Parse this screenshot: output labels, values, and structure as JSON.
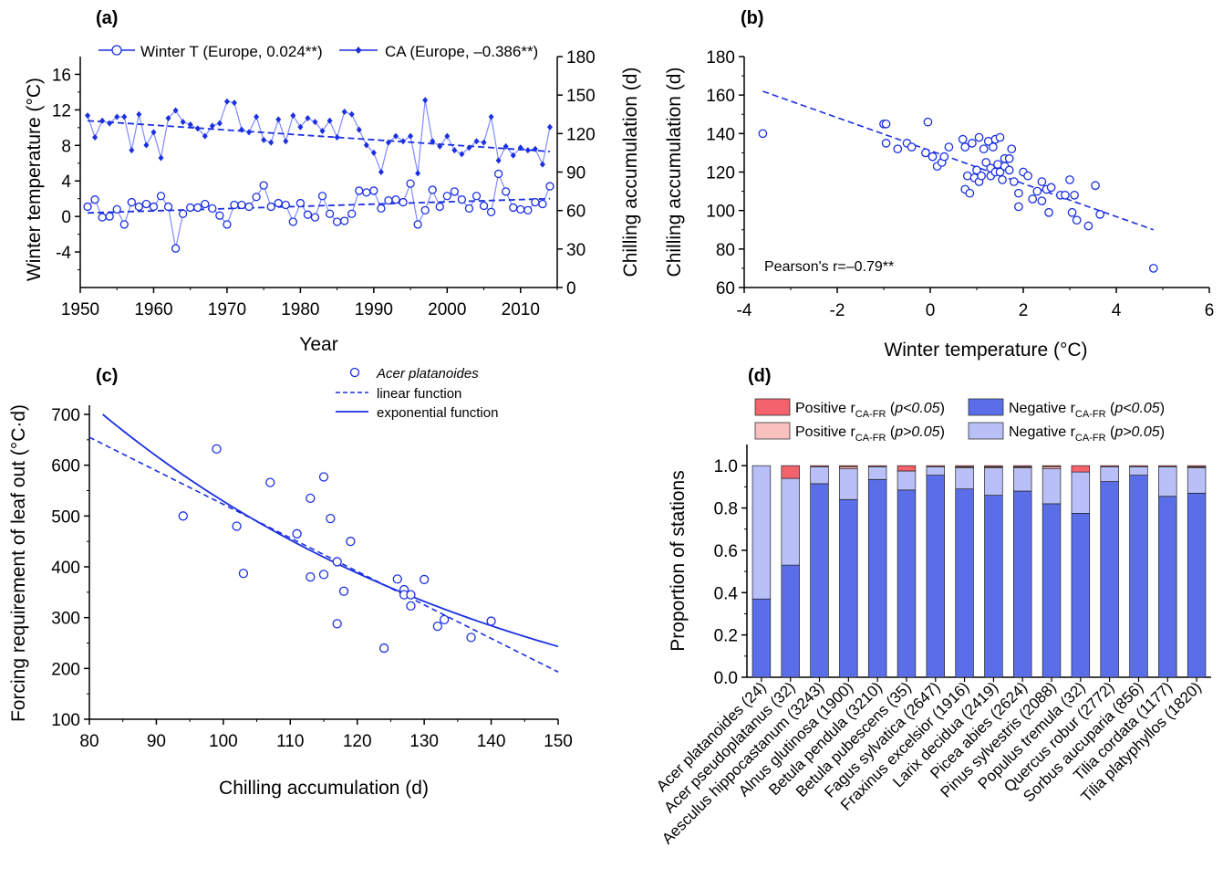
{
  "colors": {
    "blue": "#1a2fe0",
    "light_blue": "#7f8bff",
    "neg_sig": "#5a6ee8",
    "neg_nonsig": "#b9c0f8",
    "pos_sig": "#f4626b",
    "pos_nonsig": "#f9c0c0"
  },
  "chart_data": [
    {
      "panel": "(a)",
      "type": "line",
      "xlabel": "Year",
      "ylabel": "Winter temperature (°C)",
      "y2label": "Chilling accumulation (d)",
      "xlim": [
        1950,
        2015
      ],
      "ylim": [
        -8,
        18
      ],
      "y2lim": [
        0,
        180
      ],
      "xticks": [
        "1950",
        "1960",
        "1970",
        "1980",
        "1990",
        "2000",
        "2010"
      ],
      "yticks": [
        "-4",
        "0",
        "4",
        "8",
        "12",
        "16"
      ],
      "y2ticks": [
        "0",
        "30",
        "60",
        "90",
        "120",
        "150",
        "180"
      ],
      "legend": [
        "Winter T (Europe, 0.024**)",
        "CA (Europe, –0.386**)"
      ],
      "x": [
        1951,
        1952,
        1953,
        1954,
        1955,
        1956,
        1957,
        1958,
        1959,
        1960,
        1961,
        1962,
        1963,
        1964,
        1965,
        1966,
        1967,
        1968,
        1969,
        1970,
        1971,
        1972,
        1973,
        1974,
        1975,
        1976,
        1977,
        1978,
        1979,
        1980,
        1981,
        1982,
        1983,
        1984,
        1985,
        1986,
        1987,
        1988,
        1989,
        1990,
        1991,
        1992,
        1993,
        1994,
        1995,
        1996,
        1997,
        1998,
        1999,
        2000,
        2001,
        2002,
        2003,
        2004,
        2005,
        2006,
        2007,
        2008,
        2009,
        2010,
        2011,
        2012,
        2013,
        2014
      ],
      "series": [
        {
          "name": "Winter T (Europe, 0.024**)",
          "axis": "left",
          "marker": "open-circle",
          "values": [
            1.1,
            1.9,
            -0.1,
            0.0,
            0.8,
            -0.9,
            1.6,
            1.1,
            1.4,
            1.1,
            2.3,
            1.1,
            -3.6,
            0.3,
            1.0,
            1.0,
            1.4,
            0.9,
            0.1,
            -0.9,
            1.3,
            1.3,
            1.1,
            2.2,
            3.5,
            1.1,
            1.5,
            1.3,
            -0.6,
            1.5,
            0.2,
            -0.1,
            2.3,
            0.3,
            -0.6,
            -0.5,
            0.3,
            2.9,
            2.7,
            2.9,
            0.9,
            1.8,
            1.9,
            1.6,
            3.7,
            -0.9,
            0.7,
            3.0,
            1.1,
            2.3,
            2.8,
            1.9,
            0.9,
            2.3,
            1.2,
            0.5,
            4.8,
            2.8,
            1.0,
            0.8,
            0.7,
            1.6,
            1.4,
            3.4
          ],
          "trend": [
            0.4,
            2.0
          ]
        },
        {
          "name": "CA (Europe, –0.386**)",
          "axis": "right",
          "marker": "filled-diamond",
          "values": [
            134,
            117,
            130,
            128,
            133,
            133,
            107,
            135,
            111,
            121,
            101,
            132,
            138,
            129,
            127,
            124,
            118,
            126,
            128,
            145,
            144,
            123,
            121,
            133,
            115,
            113,
            131,
            114,
            134,
            125,
            132,
            129,
            122,
            130,
            117,
            137,
            135,
            123,
            111,
            105,
            90,
            113,
            118,
            114,
            118,
            89,
            146,
            114,
            110,
            118,
            107,
            104,
            109,
            114,
            113,
            133,
            99,
            110,
            103,
            109,
            107,
            108,
            96,
            125
          ],
          "trend": [
            130,
            106
          ]
        }
      ]
    },
    {
      "panel": "(b)",
      "type": "scatter",
      "xlabel": "Winter temperature (°C)",
      "ylabel": "Chilling accumulation (d)",
      "xlim": [
        -4,
        6
      ],
      "ylim": [
        60,
        180
      ],
      "xticks": [
        "-4",
        "-2",
        "0",
        "2",
        "4",
        "6"
      ],
      "yticks": [
        "60",
        "80",
        "100",
        "120",
        "140",
        "160",
        "180"
      ],
      "annotation": "Pearson's r=–0.79**",
      "points": [
        [
          -3.6,
          140
        ],
        [
          -1.0,
          145
        ],
        [
          -0.95,
          145
        ],
        [
          -0.95,
          135
        ],
        [
          -0.7,
          132
        ],
        [
          -0.5,
          135
        ],
        [
          -0.4,
          133
        ],
        [
          -0.1,
          130
        ],
        [
          -0.05,
          146
        ],
        [
          0.05,
          128
        ],
        [
          0.15,
          123
        ],
        [
          0.25,
          125
        ],
        [
          0.3,
          128
        ],
        [
          0.4,
          133
        ],
        [
          0.7,
          137
        ],
        [
          0.75,
          133
        ],
        [
          0.8,
          118
        ],
        [
          0.75,
          111
        ],
        [
          0.85,
          109
        ],
        [
          0.9,
          135
        ],
        [
          0.95,
          117
        ],
        [
          1.0,
          121
        ],
        [
          1.05,
          138
        ],
        [
          1.05,
          115
        ],
        [
          1.1,
          118
        ],
        [
          1.15,
          132
        ],
        [
          1.2,
          125
        ],
        [
          1.25,
          136
        ],
        [
          1.3,
          122
        ],
        [
          1.3,
          118
        ],
        [
          1.35,
          133
        ],
        [
          1.4,
          120
        ],
        [
          1.4,
          137
        ],
        [
          1.45,
          124
        ],
        [
          1.5,
          138
        ],
        [
          1.5,
          120
        ],
        [
          1.55,
          116
        ],
        [
          1.6,
          123
        ],
        [
          1.6,
          127
        ],
        [
          1.7,
          127
        ],
        [
          1.7,
          121
        ],
        [
          1.75,
          132
        ],
        [
          1.8,
          115
        ],
        [
          1.9,
          109
        ],
        [
          1.9,
          102
        ],
        [
          2.0,
          120
        ],
        [
          2.1,
          118
        ],
        [
          2.2,
          106
        ],
        [
          2.3,
          110
        ],
        [
          2.4,
          105
        ],
        [
          2.4,
          115
        ],
        [
          2.5,
          111
        ],
        [
          2.55,
          99
        ],
        [
          2.6,
          112
        ],
        [
          2.8,
          108
        ],
        [
          2.9,
          108
        ],
        [
          3.0,
          116
        ],
        [
          3.05,
          99
        ],
        [
          3.1,
          108
        ],
        [
          3.15,
          95
        ],
        [
          3.4,
          92
        ],
        [
          3.55,
          113
        ],
        [
          3.65,
          98
        ],
        [
          4.8,
          70
        ]
      ],
      "fit_line": [
        [
          -3.6,
          162
        ],
        [
          4.8,
          90
        ]
      ]
    },
    {
      "panel": "(c)",
      "type": "scatter",
      "xlabel": "Chilling accumulation (d)",
      "ylabel": "Forcing requirement of leaf out (°C·d)",
      "xlim": [
        80,
        150
      ],
      "ylim": [
        100,
        700
      ],
      "xticks": [
        "80",
        "90",
        "100",
        "110",
        "120",
        "130",
        "140",
        "150"
      ],
      "yticks": [
        "100",
        "200",
        "300",
        "400",
        "500",
        "600",
        "700"
      ],
      "legend": [
        "Acer platanoides",
        "linear function",
        "exponential function"
      ],
      "points": [
        [
          94,
          500
        ],
        [
          99,
          632
        ],
        [
          102,
          480
        ],
        [
          103,
          387
        ],
        [
          107,
          566
        ],
        [
          111,
          465
        ],
        [
          113,
          380
        ],
        [
          113,
          535
        ],
        [
          115,
          577
        ],
        [
          115,
          385
        ],
        [
          116,
          495
        ],
        [
          117,
          410
        ],
        [
          117,
          288
        ],
        [
          118,
          352
        ],
        [
          119,
          450
        ],
        [
          124,
          240
        ],
        [
          126,
          376
        ],
        [
          127,
          355
        ],
        [
          127,
          345
        ],
        [
          128,
          345
        ],
        [
          128,
          323
        ],
        [
          130,
          375
        ],
        [
          132,
          283
        ],
        [
          133,
          296
        ],
        [
          137,
          261
        ],
        [
          140,
          293
        ]
      ],
      "linear_fit": [
        [
          80,
          655
        ],
        [
          150,
          193
        ]
      ],
      "exp_fit": {
        "x_start": 82,
        "x_end": 150,
        "a": 700,
        "ref_x": 82,
        "b": 0.01555
      }
    },
    {
      "panel": "(d)",
      "type": "bar",
      "ylabel": "Proportion of stations",
      "ylim": [
        0,
        1.1
      ],
      "yticks": [
        "0.0",
        "0.2",
        "0.4",
        "0.6",
        "0.8",
        "1.0"
      ],
      "legend": [
        "Positive r",
        "Negative r",
        "Positive r",
        "Negative r"
      ],
      "legend_sub": "CA-FR",
      "legend_cond": [
        "p<0.05",
        "p<0.05",
        "p>0.05",
        "p>0.05"
      ],
      "categories": [
        "Acer platanoides (24)",
        "Acer pseudoplatanus (32)",
        "Aesculus hippocastanum (3243)",
        "Alnus glutinosa (1900)",
        "Betula pendula (3210)",
        "Betula pubescens (35)",
        "Fagus sylvatica (2647)",
        "Fraxinus excelsior (1916)",
        "Larix decidua (2419)",
        "Picea abies (2624)",
        "Pinus sylvestris (2088)",
        "Populus tremula (32)",
        "Quercus robur (2772)",
        "Sorbus aucuparia (856)",
        "Tilia cordata (1177)",
        "Tilia platyphyllos (1820)"
      ],
      "series": [
        {
          "name": "Negative r CA-FR (p<0.05)",
          "values": [
            0.37,
            0.53,
            0.915,
            0.84,
            0.935,
            0.885,
            0.955,
            0.89,
            0.86,
            0.88,
            0.82,
            0.775,
            0.925,
            0.955,
            0.855,
            0.87
          ]
        },
        {
          "name": "Negative r CA-FR (p>0.05)",
          "values": [
            0.63,
            0.41,
            0.08,
            0.145,
            0.06,
            0.09,
            0.04,
            0.1,
            0.13,
            0.11,
            0.165,
            0.195,
            0.07,
            0.04,
            0.14,
            0.12
          ]
        },
        {
          "name": "Positive r CA-FR (p>0.05)",
          "values": [
            0,
            0,
            0,
            0.01,
            0,
            0,
            0,
            0.005,
            0.005,
            0.005,
            0.01,
            0,
            0,
            0,
            0,
            0.005
          ]
        },
        {
          "name": "Positive r CA-FR (p<0.05)",
          "values": [
            0,
            0.06,
            0.005,
            0.005,
            0.005,
            0.025,
            0.005,
            0.005,
            0.005,
            0.005,
            0.005,
            0.03,
            0.005,
            0.005,
            0.005,
            0.005
          ]
        }
      ]
    }
  ]
}
